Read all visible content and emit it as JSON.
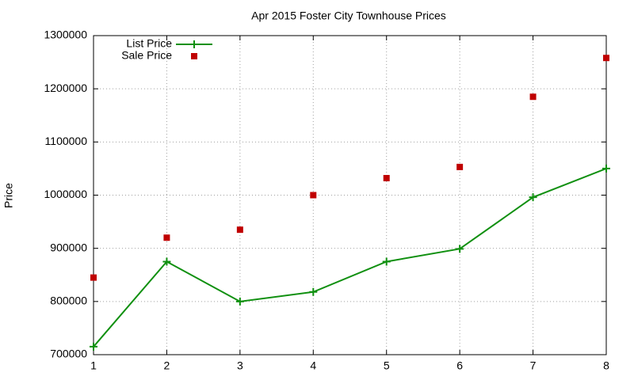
{
  "chart_data": {
    "type": "line",
    "title": "Apr 2015 Foster City Townhouse Prices",
    "y_label": "Price",
    "x": [
      1,
      2,
      3,
      4,
      5,
      6,
      7,
      8
    ],
    "series": [
      {
        "name": "List Price",
        "color": "#109010",
        "mode": "lines+markers",
        "marker": "plus",
        "values": [
          715000,
          875000,
          800000,
          818000,
          875000,
          899000,
          996000,
          1050000
        ]
      },
      {
        "name": "Sale Price",
        "color": "#c00000",
        "mode": "markers",
        "marker": "square",
        "values": [
          845000,
          920000,
          935000,
          1000000,
          1032000,
          1053000,
          1185000,
          1258000
        ]
      }
    ],
    "xlim": [
      1,
      8
    ],
    "xticks": [
      1,
      2,
      3,
      4,
      5,
      6,
      7,
      8
    ],
    "ylim": [
      700000,
      1300000
    ],
    "yticks": [
      700000,
      800000,
      900000,
      1000000,
      1100000,
      1200000,
      1300000
    ],
    "grid": true,
    "legend": "top-left"
  }
}
